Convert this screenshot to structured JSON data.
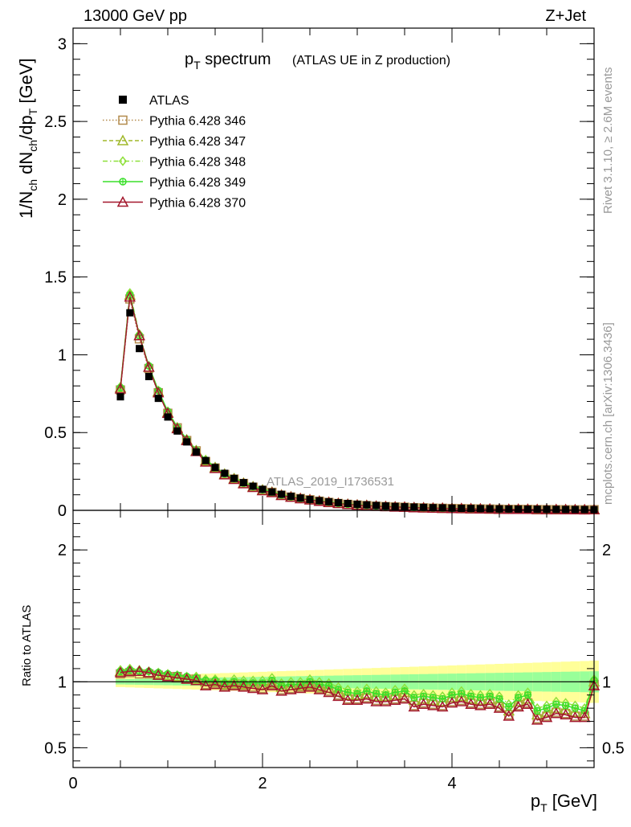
{
  "header": {
    "left": "13000 GeV pp",
    "right": "Z+Jet"
  },
  "side": {
    "rivet": "Rivet 3.1.10, ≥ 2.6M events",
    "mcplots": "mcplots.cern.ch [arXiv:1306.3436]"
  },
  "watermark": "ATLAS_2019_I1736531",
  "chart_data": {
    "type": "scatter",
    "title_main": "p",
    "title_sub": "T",
    "title_rest": " spectrum",
    "title_paren": "(ATLAS UE in Z production)",
    "ylabel": "1/N",
    "ylabel_parts": [
      "1/N",
      "ch",
      " dN",
      "ch",
      "/dp",
      "T",
      " [GeV]"
    ],
    "xlabel_parts": [
      "p",
      "T",
      " [GeV]"
    ],
    "ratio_ylabel": "Ratio to ATLAS",
    "xlim": [
      0,
      5.5
    ],
    "ylim": [
      0,
      3.1
    ],
    "ratio_ylim": [
      0.35,
      2.3
    ],
    "x_ticks": [
      "0",
      "2",
      "4"
    ],
    "y_ticks": [
      "0",
      "0.5",
      "1",
      "1.5",
      "2",
      "2.5",
      "3"
    ],
    "ratio_ticks": [
      "0.5",
      "1",
      "2"
    ],
    "x": [
      0.5,
      0.6,
      0.7,
      0.8,
      0.9,
      1.0,
      1.1,
      1.2,
      1.3,
      1.4,
      1.5,
      1.6,
      1.7,
      1.8,
      1.9,
      2.0,
      2.1,
      2.2,
      2.3,
      2.4,
      2.5,
      2.6,
      2.7,
      2.8,
      2.9,
      3.0,
      3.1,
      3.2,
      3.3,
      3.4,
      3.5,
      3.6,
      3.7,
      3.8,
      3.9,
      4.0,
      4.1,
      4.2,
      4.3,
      4.4,
      4.5,
      4.6,
      4.7,
      4.8,
      4.9,
      5.0,
      5.1,
      5.2,
      5.3,
      5.4,
      5.5
    ],
    "atlas": [
      0.73,
      1.27,
      1.04,
      0.86,
      0.72,
      0.6,
      0.51,
      0.44,
      0.375,
      0.32,
      0.275,
      0.238,
      0.205,
      0.178,
      0.155,
      0.135,
      0.118,
      0.103,
      0.09,
      0.079,
      0.07,
      0.062,
      0.055,
      0.049,
      0.044,
      0.039,
      0.035,
      0.031,
      0.028,
      0.025,
      0.023,
      0.021,
      0.019,
      0.017,
      0.016,
      0.014,
      0.013,
      0.012,
      0.011,
      0.01,
      0.009,
      0.0085,
      0.008,
      0.0075,
      0.007,
      0.0065,
      0.006,
      0.0055,
      0.005,
      0.0048,
      0.0045
    ],
    "series": [
      {
        "name": "Pythia 6.428 346",
        "color": "#b38b4d",
        "marker": "square-open",
        "line": "dotted",
        "ratio": [
          1.06,
          1.07,
          1.06,
          1.06,
          1.05,
          1.04,
          1.04,
          1.02,
          1.02,
          0.98,
          0.99,
          0.97,
          0.98,
          0.97,
          0.96,
          0.95,
          0.98,
          0.94,
          0.95,
          0.96,
          0.97,
          0.95,
          0.93,
          0.9,
          0.87,
          0.87,
          0.88,
          0.86,
          0.86,
          0.87,
          0.88,
          0.82,
          0.84,
          0.83,
          0.82,
          0.85,
          0.86,
          0.84,
          0.83,
          0.84,
          0.81,
          0.75,
          0.82,
          0.84,
          0.72,
          0.74,
          0.77,
          0.76,
          0.74,
          0.74,
          0.98
        ]
      },
      {
        "name": "Pythia 6.428 347",
        "color": "#a0b82a",
        "marker": "triangle-open",
        "line": "dashed",
        "ratio": [
          1.08,
          1.09,
          1.08,
          1.07,
          1.06,
          1.05,
          1.04,
          1.03,
          1.02,
          1.0,
          1.0,
          0.98,
          0.99,
          0.98,
          0.98,
          0.97,
          0.99,
          0.96,
          0.97,
          0.97,
          0.98,
          0.96,
          0.95,
          0.92,
          0.9,
          0.9,
          0.91,
          0.89,
          0.89,
          0.9,
          0.92,
          0.86,
          0.87,
          0.86,
          0.85,
          0.88,
          0.89,
          0.87,
          0.86,
          0.87,
          0.84,
          0.78,
          0.85,
          0.87,
          0.75,
          0.77,
          0.8,
          0.79,
          0.77,
          0.76,
          1.0
        ]
      },
      {
        "name": "Pythia 6.428 348",
        "color": "#8ee03a",
        "marker": "diamond-open",
        "line": "dashdot",
        "ratio": [
          1.09,
          1.1,
          1.09,
          1.08,
          1.07,
          1.06,
          1.05,
          1.04,
          1.04,
          1.02,
          1.02,
          1.0,
          1.02,
          1.01,
          1.01,
          1.01,
          1.03,
          0.99,
          1.0,
          1.0,
          1.02,
          1.0,
          0.99,
          0.96,
          0.94,
          0.93,
          0.95,
          0.93,
          0.92,
          0.94,
          0.95,
          0.9,
          0.91,
          0.9,
          0.89,
          0.92,
          0.93,
          0.91,
          0.9,
          0.91,
          0.89,
          0.83,
          0.9,
          0.92,
          0.8,
          0.82,
          0.85,
          0.84,
          0.82,
          0.8,
          1.02
        ]
      },
      {
        "name": "Pythia 6.428 349",
        "color": "#3adf2a",
        "marker": "circle-cross",
        "line": "solid",
        "ratio": [
          1.08,
          1.09,
          1.08,
          1.08,
          1.07,
          1.06,
          1.05,
          1.04,
          1.03,
          1.01,
          1.01,
          0.99,
          1.0,
          0.99,
          0.99,
          0.99,
          1.01,
          0.97,
          0.98,
          0.98,
          1.0,
          0.98,
          0.97,
          0.94,
          0.92,
          0.91,
          0.93,
          0.91,
          0.9,
          0.92,
          0.93,
          0.88,
          0.89,
          0.88,
          0.87,
          0.9,
          0.91,
          0.89,
          0.88,
          0.89,
          0.87,
          0.81,
          0.88,
          0.9,
          0.78,
          0.8,
          0.83,
          0.82,
          0.8,
          0.78,
          1.01
        ]
      },
      {
        "name": "Pythia 6.428 370",
        "color": "#a3172c",
        "marker": "triangle-open",
        "line": "solid",
        "ratio": [
          1.07,
          1.08,
          1.08,
          1.07,
          1.05,
          1.04,
          1.03,
          1.02,
          1.01,
          0.97,
          0.98,
          0.96,
          0.97,
          0.96,
          0.95,
          0.94,
          0.97,
          0.93,
          0.94,
          0.95,
          0.96,
          0.94,
          0.92,
          0.89,
          0.86,
          0.86,
          0.87,
          0.85,
          0.85,
          0.86,
          0.87,
          0.81,
          0.83,
          0.82,
          0.81,
          0.84,
          0.85,
          0.83,
          0.82,
          0.83,
          0.8,
          0.74,
          0.81,
          0.83,
          0.71,
          0.73,
          0.76,
          0.75,
          0.73,
          0.73,
          0.97
        ]
      }
    ],
    "legend": {
      "data_label": "ATLAS",
      "placement": "top-left"
    },
    "bands": {
      "yellow": "#ffff99",
      "green": "#99ff99"
    }
  }
}
